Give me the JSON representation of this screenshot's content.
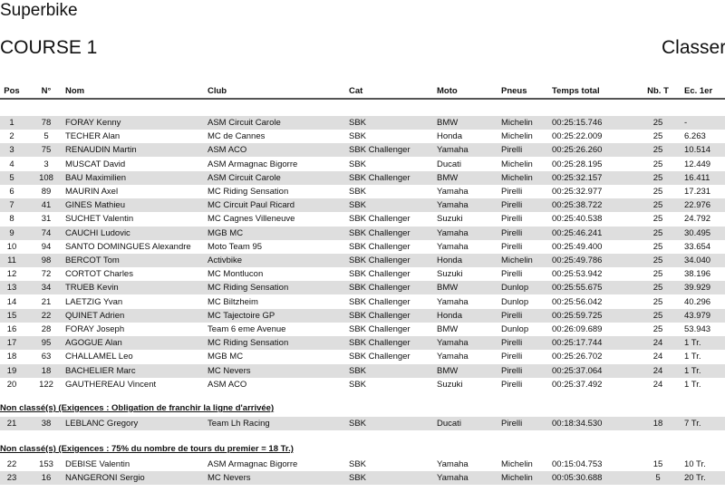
{
  "header": {
    "title": "Superbike",
    "subtitle": "COURSE 1",
    "right_title": "Classer"
  },
  "columns": [
    "Pos",
    "N°",
    "Nom",
    "Club",
    "Cat",
    "Moto",
    "Pneus",
    "Temps total",
    "Nb. T",
    "Ec. 1er"
  ],
  "classified": [
    [
      "1",
      "78",
      "FORAY Kenny",
      "ASM Circuit Carole",
      "SBK",
      "BMW",
      "Michelin",
      "00:25:15.746",
      "25",
      "-"
    ],
    [
      "2",
      "5",
      "TECHER Alan",
      "MC de Cannes",
      "SBK",
      "Honda",
      "Michelin",
      "00:25:22.009",
      "25",
      "6.263"
    ],
    [
      "3",
      "75",
      "RENAUDIN Martin",
      "ASM ACO",
      "SBK Challenger",
      "Yamaha",
      "Pirelli",
      "00:25:26.260",
      "25",
      "10.514"
    ],
    [
      "4",
      "3",
      "MUSCAT David",
      "ASM Armagnac Bigorre",
      "SBK",
      "Ducati",
      "Michelin",
      "00:25:28.195",
      "25",
      "12.449"
    ],
    [
      "5",
      "108",
      "BAU Maximilien",
      "ASM Circuit Carole",
      "SBK Challenger",
      "BMW",
      "Michelin",
      "00:25:32.157",
      "25",
      "16.411"
    ],
    [
      "6",
      "89",
      "MAURIN Axel",
      "MC Riding Sensation",
      "SBK",
      "Yamaha",
      "Pirelli",
      "00:25:32.977",
      "25",
      "17.231"
    ],
    [
      "7",
      "41",
      "GINES Mathieu",
      "MC Circuit Paul Ricard",
      "SBK",
      "Yamaha",
      "Pirelli",
      "00:25:38.722",
      "25",
      "22.976"
    ],
    [
      "8",
      "31",
      "SUCHET Valentin",
      "MC Cagnes Villeneuve",
      "SBK Challenger",
      "Suzuki",
      "Pirelli",
      "00:25:40.538",
      "25",
      "24.792"
    ],
    [
      "9",
      "74",
      "CAUCHI Ludovic",
      "MGB MC",
      "SBK Challenger",
      "Yamaha",
      "Pirelli",
      "00:25:46.241",
      "25",
      "30.495"
    ],
    [
      "10",
      "94",
      "SANTO DOMINGUES Alexandre",
      "Moto Team 95",
      "SBK Challenger",
      "Yamaha",
      "Pirelli",
      "00:25:49.400",
      "25",
      "33.654"
    ],
    [
      "11",
      "98",
      "BERCOT Tom",
      "Activbike",
      "SBK Challenger",
      "Honda",
      "Michelin",
      "00:25:49.786",
      "25",
      "34.040"
    ],
    [
      "12",
      "72",
      "CORTOT Charles",
      "MC Montlucon",
      "SBK Challenger",
      "Suzuki",
      "Pirelli",
      "00:25:53.942",
      "25",
      "38.196"
    ],
    [
      "13",
      "34",
      "TRUEB Kevin",
      "MC Riding Sensation",
      "SBK Challenger",
      "BMW",
      "Dunlop",
      "00:25:55.675",
      "25",
      "39.929"
    ],
    [
      "14",
      "21",
      "LAETZIG Yvan",
      "MC Biltzheim",
      "SBK Challenger",
      "Yamaha",
      "Dunlop",
      "00:25:56.042",
      "25",
      "40.296"
    ],
    [
      "15",
      "22",
      "QUINET Adrien",
      "MC Tajectoire GP",
      "SBK Challenger",
      "Honda",
      "Pirelli",
      "00:25:59.725",
      "25",
      "43.979"
    ],
    [
      "16",
      "28",
      "FORAY Joseph",
      "Team 6 eme Avenue",
      "SBK Challenger",
      "BMW",
      "Dunlop",
      "00:26:09.689",
      "25",
      "53.943"
    ],
    [
      "17",
      "95",
      "AGOGUE Alan",
      "MC Riding Sensation",
      "SBK Challenger",
      "Yamaha",
      "Pirelli",
      "00:25:17.744",
      "24",
      "1 Tr."
    ],
    [
      "18",
      "63",
      "CHALLAMEL Leo",
      "MGB MC",
      "SBK Challenger",
      "Yamaha",
      "Pirelli",
      "00:25:26.702",
      "24",
      "1 Tr."
    ],
    [
      "19",
      "18",
      "BACHELIER Marc",
      "MC Nevers",
      "SBK",
      "BMW",
      "Pirelli",
      "00:25:37.064",
      "24",
      "1 Tr."
    ],
    [
      "20",
      "122",
      "GAUTHEREAU Vincent",
      "ASM ACO",
      "SBK",
      "Suzuki",
      "Pirelli",
      "00:25:37.492",
      "24",
      "1 Tr."
    ]
  ],
  "sections": [
    {
      "title": "Non classé(s) (Exigences : Obligation de franchir la ligne d'arrivée)",
      "rows": [
        [
          "21",
          "38",
          "LEBLANC Gregory",
          "Team Lh Racing",
          "SBK",
          "Ducati",
          "Pirelli",
          "00:18:34.530",
          "18",
          "7 Tr."
        ]
      ]
    },
    {
      "title": "Non classé(s) (Exigences : 75% du nombre de tours du premier = 18 Tr.)",
      "rows": [
        [
          "22",
          "153",
          "DEBISE Valentin",
          "ASM Armagnac Bigorre",
          "SBK",
          "Yamaha",
          "Michelin",
          "00:15:04.753",
          "15",
          "10 Tr."
        ],
        [
          "23",
          "16",
          "NANGERONI Sergio",
          "MC Nevers",
          "SBK",
          "Yamaha",
          "Michelin",
          "00:05:30.688",
          "5",
          "20 Tr."
        ]
      ]
    }
  ],
  "colors": {
    "stripe": "#dedede",
    "header_rule": "#555555"
  }
}
